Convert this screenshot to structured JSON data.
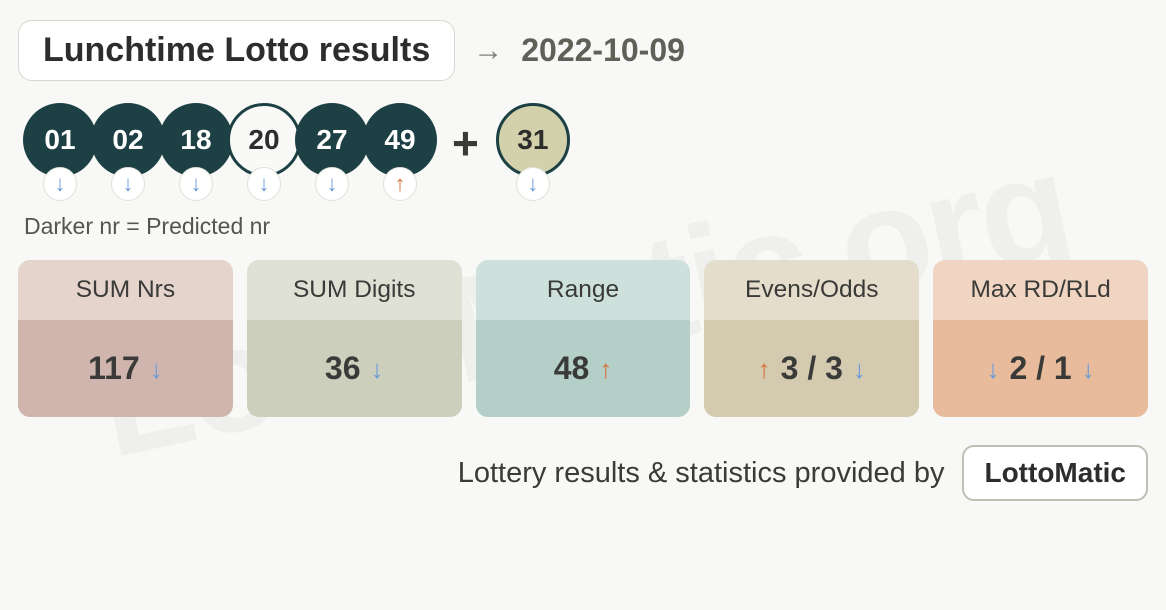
{
  "header": {
    "title": "Lunchtime Lotto results",
    "date": "2022-10-09"
  },
  "balls": [
    {
      "n": "01",
      "style": "dark",
      "trend": "down"
    },
    {
      "n": "02",
      "style": "dark",
      "trend": "down"
    },
    {
      "n": "18",
      "style": "dark",
      "trend": "down"
    },
    {
      "n": "20",
      "style": "light",
      "trend": "down"
    },
    {
      "n": "27",
      "style": "dark",
      "trend": "down"
    },
    {
      "n": "49",
      "style": "dark",
      "trend": "up"
    }
  ],
  "bonus": {
    "n": "31",
    "style": "bonus",
    "trend": "down"
  },
  "legend": "Darker nr = Predicted nr",
  "stats": [
    {
      "label": "SUM Nrs",
      "value": "117",
      "trend_after": "down",
      "head_bg": "#e4d4cc",
      "body_bg": "#d0b5ae"
    },
    {
      "label": "SUM Digits",
      "value": "36",
      "trend_after": "down",
      "head_bg": "#e0e1d5",
      "body_bg": "#cdcfbd"
    },
    {
      "label": "Range",
      "value": "48",
      "trend_after": "up",
      "head_bg": "#cee0db",
      "body_bg": "#b3cfc8"
    },
    {
      "label": "Evens/Odds",
      "value_a": "3",
      "value_b": "3",
      "trend_before": "up",
      "trend_after": "down",
      "sep": " / ",
      "head_bg": "#e4ddcb",
      "body_bg": "#d4cab0"
    },
    {
      "label": "Max RD/RLd",
      "value_a": "2",
      "value_b": "1",
      "trend_before": "down",
      "trend_after": "down",
      "sep": " / ",
      "head_bg": "#f0d6c2",
      "body_bg": "#e7bb9c"
    }
  ],
  "footer": {
    "text": "Lottery results & statistics provided by",
    "brand": "LottoMatic"
  },
  "colors": {
    "trend_down": "#6b9bd8",
    "trend_up": "#d8733a"
  }
}
